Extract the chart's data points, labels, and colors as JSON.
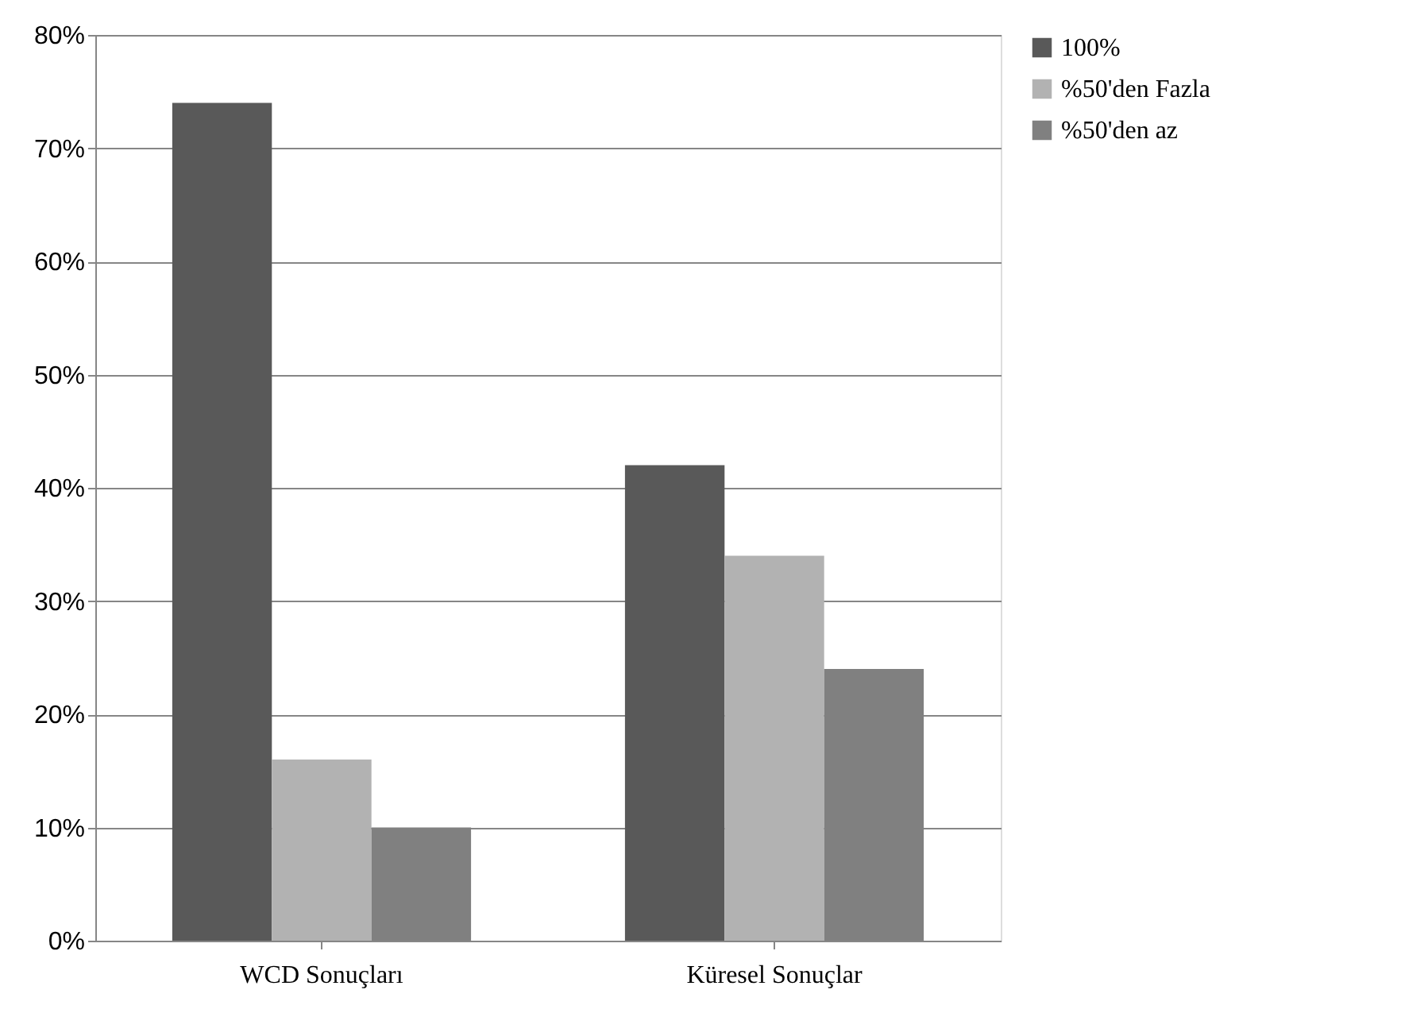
{
  "chart_data": {
    "type": "bar",
    "categories": [
      "WCD Sonuçları",
      "Küresel Sonuçlar"
    ],
    "series": [
      {
        "name": "100%",
        "color": "#595959",
        "values": [
          74,
          42
        ]
      },
      {
        "name": "%50'den Fazla",
        "color": "#b2b2b2",
        "values": [
          16,
          34
        ]
      },
      {
        "name": "%50'den az",
        "color": "#808080",
        "values": [
          10,
          24
        ]
      }
    ],
    "ylim": [
      0,
      80
    ],
    "yticks": [
      {
        "value": 0,
        "label": "0%"
      },
      {
        "value": 10,
        "label": "10%"
      },
      {
        "value": 20,
        "label": "20%"
      },
      {
        "value": 30,
        "label": "30%"
      },
      {
        "value": 40,
        "label": "40%"
      },
      {
        "value": 50,
        "label": "50%"
      },
      {
        "value": 60,
        "label": "60%"
      },
      {
        "value": 70,
        "label": "70%"
      },
      {
        "value": 80,
        "label": "80%"
      }
    ],
    "grid": "y",
    "legend": "right"
  }
}
